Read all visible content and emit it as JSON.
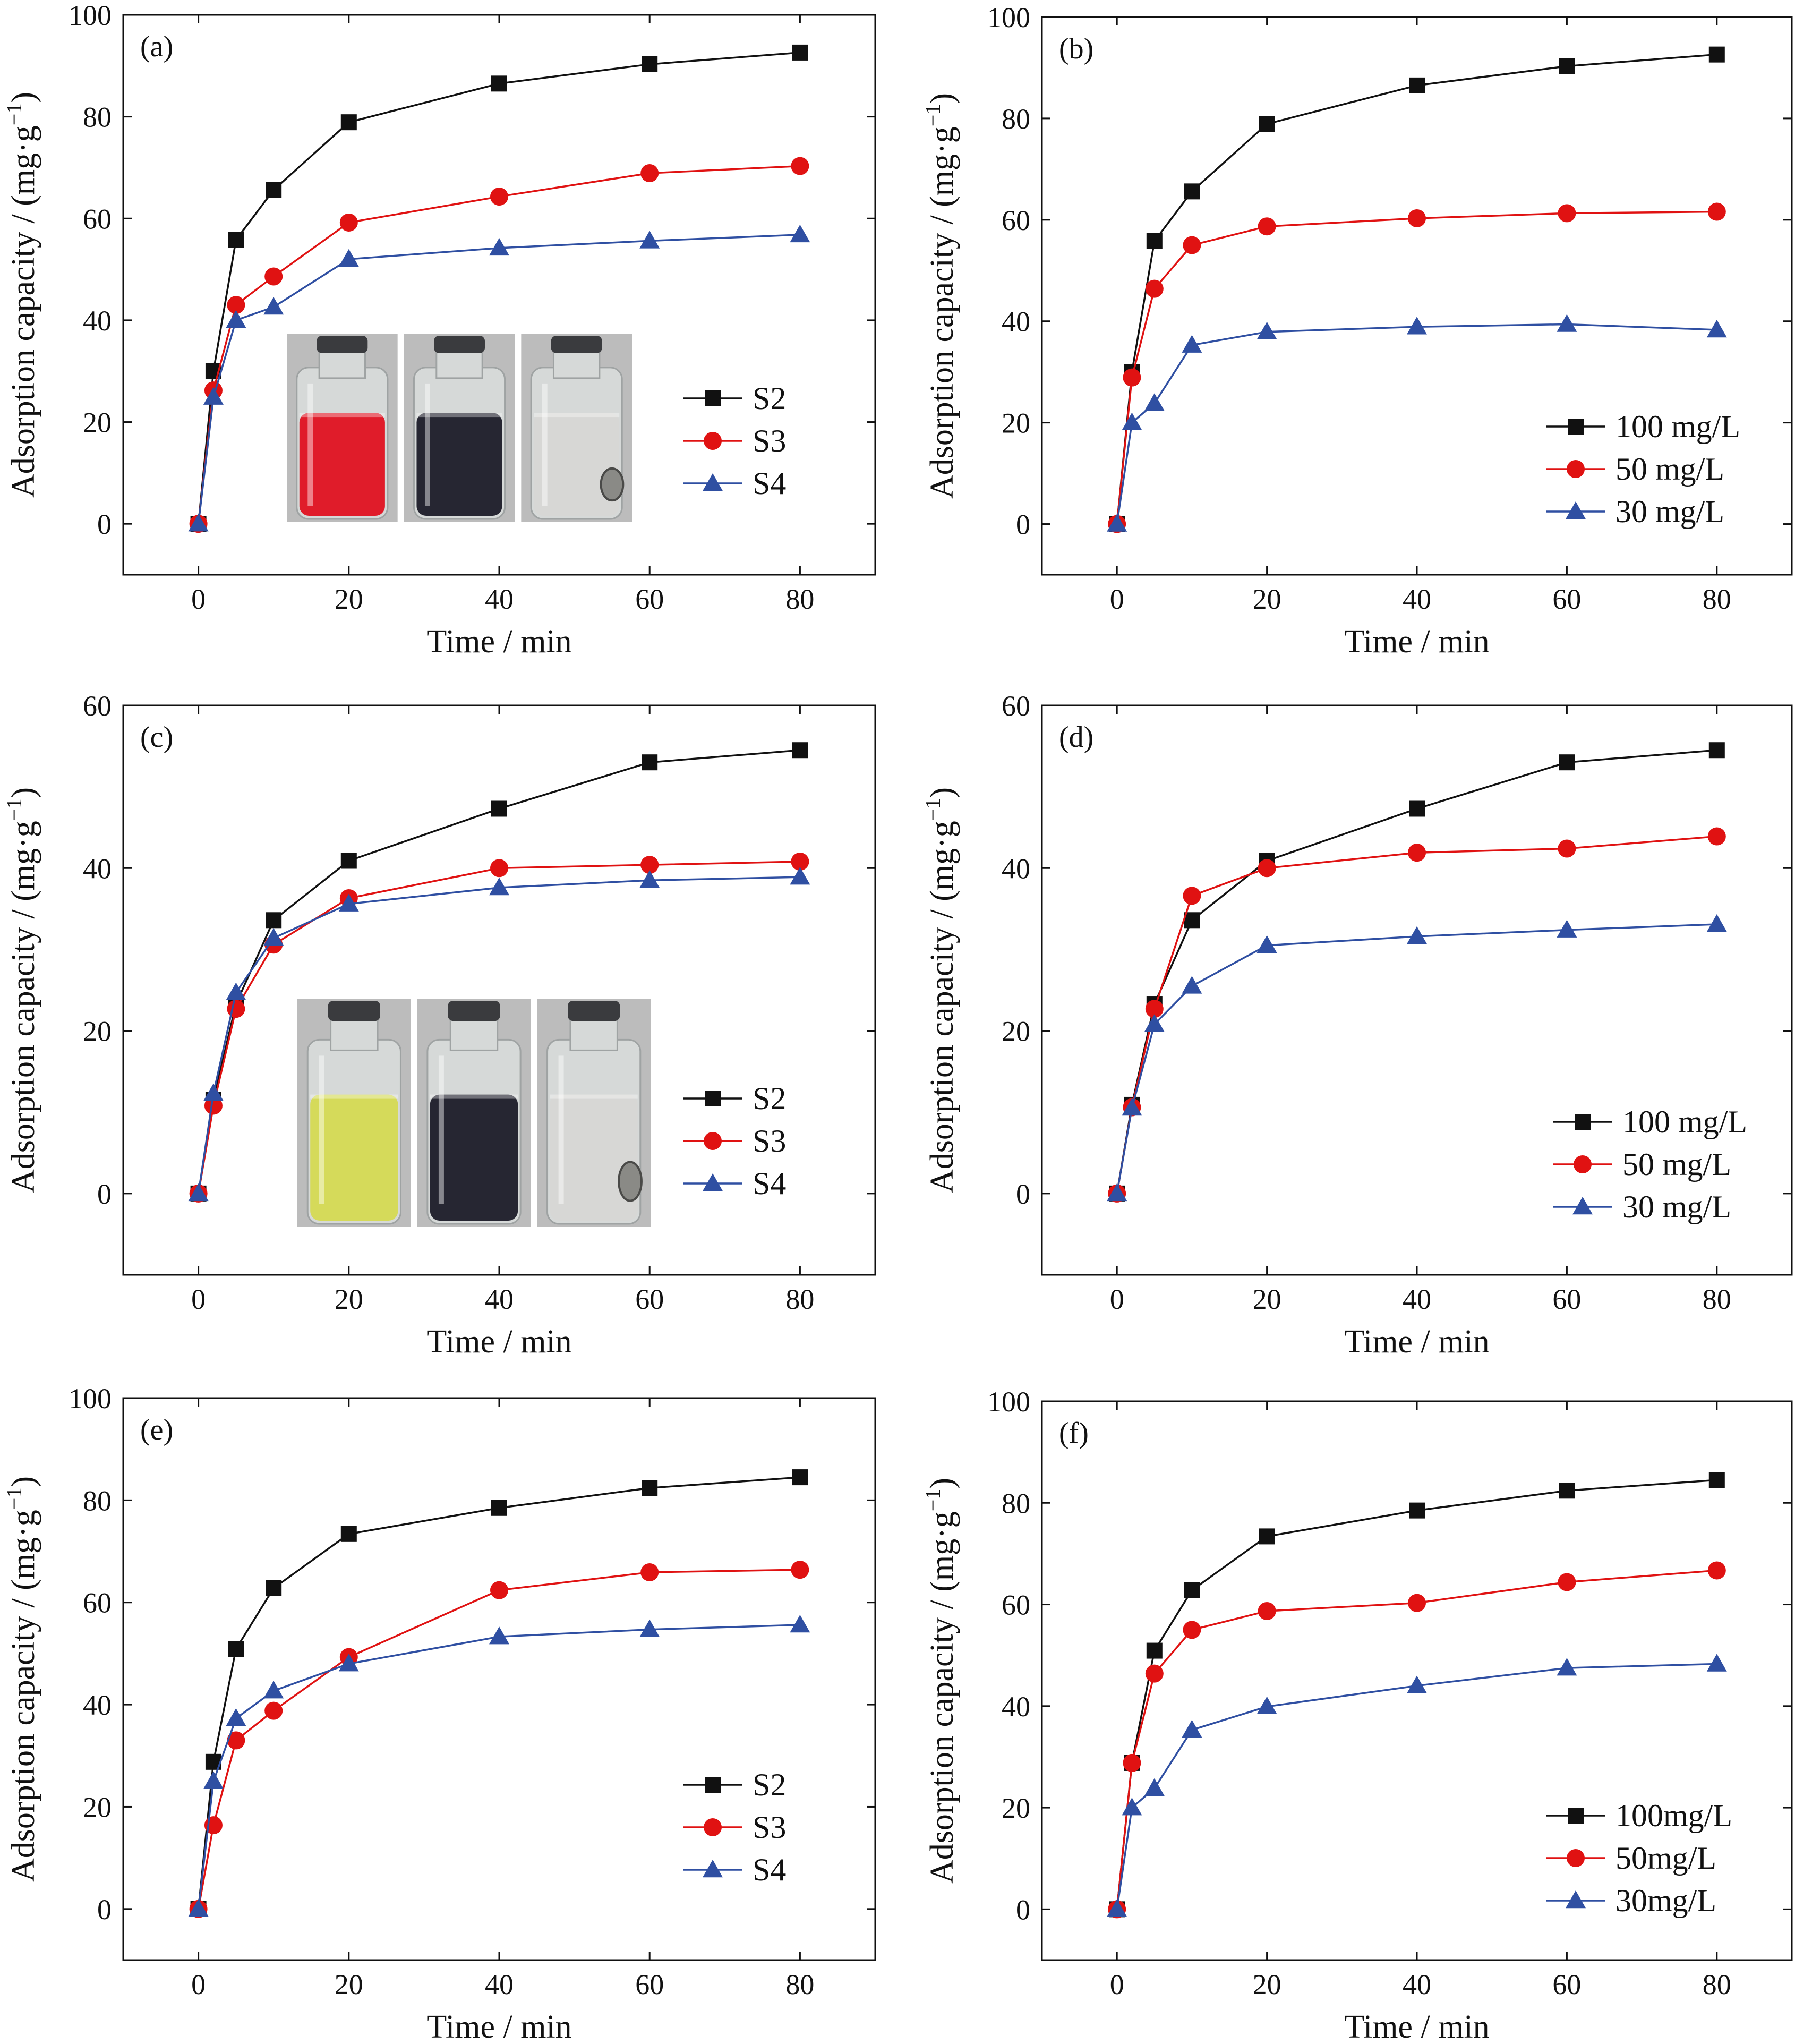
{
  "figure": {
    "series_colors": [
      "#111111",
      "#e01212",
      "#2f4fa2"
    ],
    "photo_colors": {
      "red_liquid": "#e01c2a",
      "yellow_liquid": "#d5da5a",
      "dark_liquid": "#262632",
      "clear_liquid": "#d7d7d5",
      "glass": "#d6d9d8",
      "cap": "#3a3b3e",
      "backdrop": "#bcbcbc"
    }
  },
  "chart_data": [
    {
      "type": "line",
      "panel_label": "(a)",
      "xlabel": "Time / min",
      "ylabel": "Adsorption capacity / (mg·g",
      "ylabel_sup": "−1",
      "ylabel_close": ")",
      "xlim": [
        -10,
        90
      ],
      "ylim": [
        -10,
        100
      ],
      "xticks": [
        0,
        20,
        40,
        60,
        80
      ],
      "yticks": [
        0,
        20,
        40,
        60,
        80,
        100
      ],
      "legend_position": "center-right",
      "has_inset_photo": true,
      "inset_liquids": [
        "red_liquid",
        "dark_liquid",
        "clear_liquid"
      ],
      "x": [
        0,
        2,
        5,
        10,
        20,
        40,
        60,
        80
      ],
      "series": [
        {
          "name": "S2",
          "marker": "square",
          "values": [
            0,
            30,
            55.8,
            65.6,
            78.9,
            86.5,
            90.3,
            92.6
          ]
        },
        {
          "name": "S3",
          "marker": "circle",
          "values": [
            0,
            26.2,
            43.0,
            48.6,
            59.2,
            64.3,
            68.9,
            70.3
          ]
        },
        {
          "name": "S4",
          "marker": "triangle",
          "values": [
            0,
            24.9,
            40.0,
            42.6,
            52.0,
            54.2,
            55.6,
            56.8
          ]
        }
      ]
    },
    {
      "type": "line",
      "panel_label": "(b)",
      "xlabel": "Time / min",
      "ylabel": "Adsorption capacity / (mg·g",
      "ylabel_sup": "−1",
      "ylabel_close": ")",
      "xlim": [
        -10,
        90
      ],
      "ylim": [
        -10,
        100
      ],
      "xticks": [
        0,
        20,
        40,
        60,
        80
      ],
      "yticks": [
        0,
        20,
        40,
        60,
        80,
        100
      ],
      "legend_position": "bottom-right",
      "has_inset_photo": false,
      "x": [
        0,
        2,
        5,
        10,
        20,
        40,
        60,
        80
      ],
      "series": [
        {
          "name": "100 mg/L",
          "marker": "square",
          "values": [
            0,
            30,
            55.8,
            65.6,
            78.9,
            86.5,
            90.3,
            92.6
          ]
        },
        {
          "name": "50 mg/L",
          "marker": "circle",
          "values": [
            0,
            28.9,
            46.4,
            55.0,
            58.7,
            60.3,
            61.3,
            61.6
          ]
        },
        {
          "name": "30 mg/L",
          "marker": "triangle",
          "values": [
            0,
            20.0,
            23.8,
            35.3,
            37.9,
            38.9,
            39.4,
            38.3
          ]
        }
      ]
    },
    {
      "type": "line",
      "panel_label": "(c)",
      "xlabel": "Time / min",
      "ylabel": "Adsorption capacity / (mg·g",
      "ylabel_sup": "−1",
      "ylabel_close": ")",
      "xlim": [
        -10,
        90
      ],
      "ylim": [
        -10,
        60
      ],
      "xticks": [
        0,
        20,
        40,
        60,
        80
      ],
      "yticks": [
        0,
        20,
        40,
        60
      ],
      "legend_position": "center-right",
      "has_inset_photo": true,
      "inset_liquids": [
        "yellow_liquid",
        "dark_liquid",
        "clear_liquid"
      ],
      "x": [
        0,
        2,
        5,
        10,
        20,
        40,
        60,
        80
      ],
      "series": [
        {
          "name": "S2",
          "marker": "square",
          "values": [
            0,
            11.5,
            23.3,
            33.6,
            40.9,
            47.3,
            53.0,
            54.5
          ]
        },
        {
          "name": "S3",
          "marker": "circle",
          "values": [
            0,
            10.8,
            22.7,
            30.6,
            36.3,
            40.0,
            40.4,
            40.8
          ]
        },
        {
          "name": "S4",
          "marker": "triangle",
          "values": [
            0,
            12.3,
            24.7,
            31.4,
            35.6,
            37.6,
            38.5,
            38.9
          ]
        }
      ]
    },
    {
      "type": "line",
      "panel_label": "(d)",
      "xlabel": "Time / min",
      "ylabel": "Adsorption capacity / (mg·g",
      "ylabel_sup": "−1",
      "ylabel_close": ")",
      "xlim": [
        -10,
        90
      ],
      "ylim": [
        -10,
        60
      ],
      "xticks": [
        0,
        20,
        40,
        60,
        80
      ],
      "yticks": [
        0,
        20,
        40,
        60
      ],
      "legend_position": "bottom-right",
      "has_inset_photo": false,
      "x": [
        0,
        2,
        5,
        10,
        20,
        40,
        60,
        80
      ],
      "series": [
        {
          "name": "100 mg/L",
          "marker": "square",
          "values": [
            0,
            10.9,
            23.3,
            33.6,
            40.9,
            47.3,
            53.0,
            54.5
          ]
        },
        {
          "name": "50 mg/L",
          "marker": "circle",
          "values": [
            0,
            10.6,
            22.7,
            36.6,
            40.0,
            41.9,
            42.4,
            43.9
          ]
        },
        {
          "name": "30 mg/L",
          "marker": "triangle",
          "values": [
            0,
            10.5,
            20.8,
            25.5,
            30.5,
            31.6,
            32.4,
            33.1
          ]
        }
      ]
    },
    {
      "type": "line",
      "panel_label": "(e)",
      "xlabel": "Time / min",
      "ylabel": "Adsorption capacity / (mg·g",
      "ylabel_sup": "−1",
      "ylabel_close": ")",
      "xlim": [
        -10,
        90
      ],
      "ylim": [
        -10,
        100
      ],
      "xticks": [
        0,
        20,
        40,
        60,
        80
      ],
      "yticks": [
        0,
        20,
        40,
        60,
        80,
        100
      ],
      "legend_position": "bottom-right",
      "has_inset_photo": false,
      "x": [
        0,
        2,
        5,
        10,
        20,
        40,
        60,
        80
      ],
      "series": [
        {
          "name": "S2",
          "marker": "square",
          "values": [
            0,
            28.8,
            50.9,
            62.8,
            73.4,
            78.5,
            82.4,
            84.5
          ]
        },
        {
          "name": "S3",
          "marker": "circle",
          "values": [
            0,
            16.4,
            33.0,
            38.8,
            49.3,
            62.4,
            65.9,
            66.4
          ]
        },
        {
          "name": "S4",
          "marker": "triangle",
          "values": [
            0,
            25.0,
            37.3,
            42.7,
            48.0,
            53.3,
            54.7,
            55.6
          ]
        }
      ]
    },
    {
      "type": "line",
      "panel_label": "(f)",
      "xlabel": "Time / min",
      "ylabel": "Adsorption capacity / (mg·g",
      "ylabel_sup": "−1",
      "ylabel_close": ")",
      "xlim": [
        -10,
        90
      ],
      "ylim": [
        -10,
        100
      ],
      "xticks": [
        0,
        20,
        40,
        60,
        80
      ],
      "yticks": [
        0,
        20,
        40,
        60,
        80,
        100
      ],
      "legend_position": "bottom-right",
      "has_inset_photo": false,
      "x": [
        0,
        2,
        5,
        10,
        20,
        40,
        60,
        80
      ],
      "series": [
        {
          "name": "100mg/L",
          "marker": "square",
          "values": [
            0,
            28.8,
            50.9,
            62.8,
            73.4,
            78.5,
            82.4,
            84.5
          ]
        },
        {
          "name": "50mg/L",
          "marker": "circle",
          "values": [
            0,
            28.8,
            46.4,
            55.0,
            58.7,
            60.3,
            64.4,
            66.7
          ]
        },
        {
          "name": "30mg/L",
          "marker": "triangle",
          "values": [
            0,
            20.0,
            23.8,
            35.3,
            39.9,
            44.0,
            47.5,
            48.3
          ]
        }
      ]
    }
  ]
}
